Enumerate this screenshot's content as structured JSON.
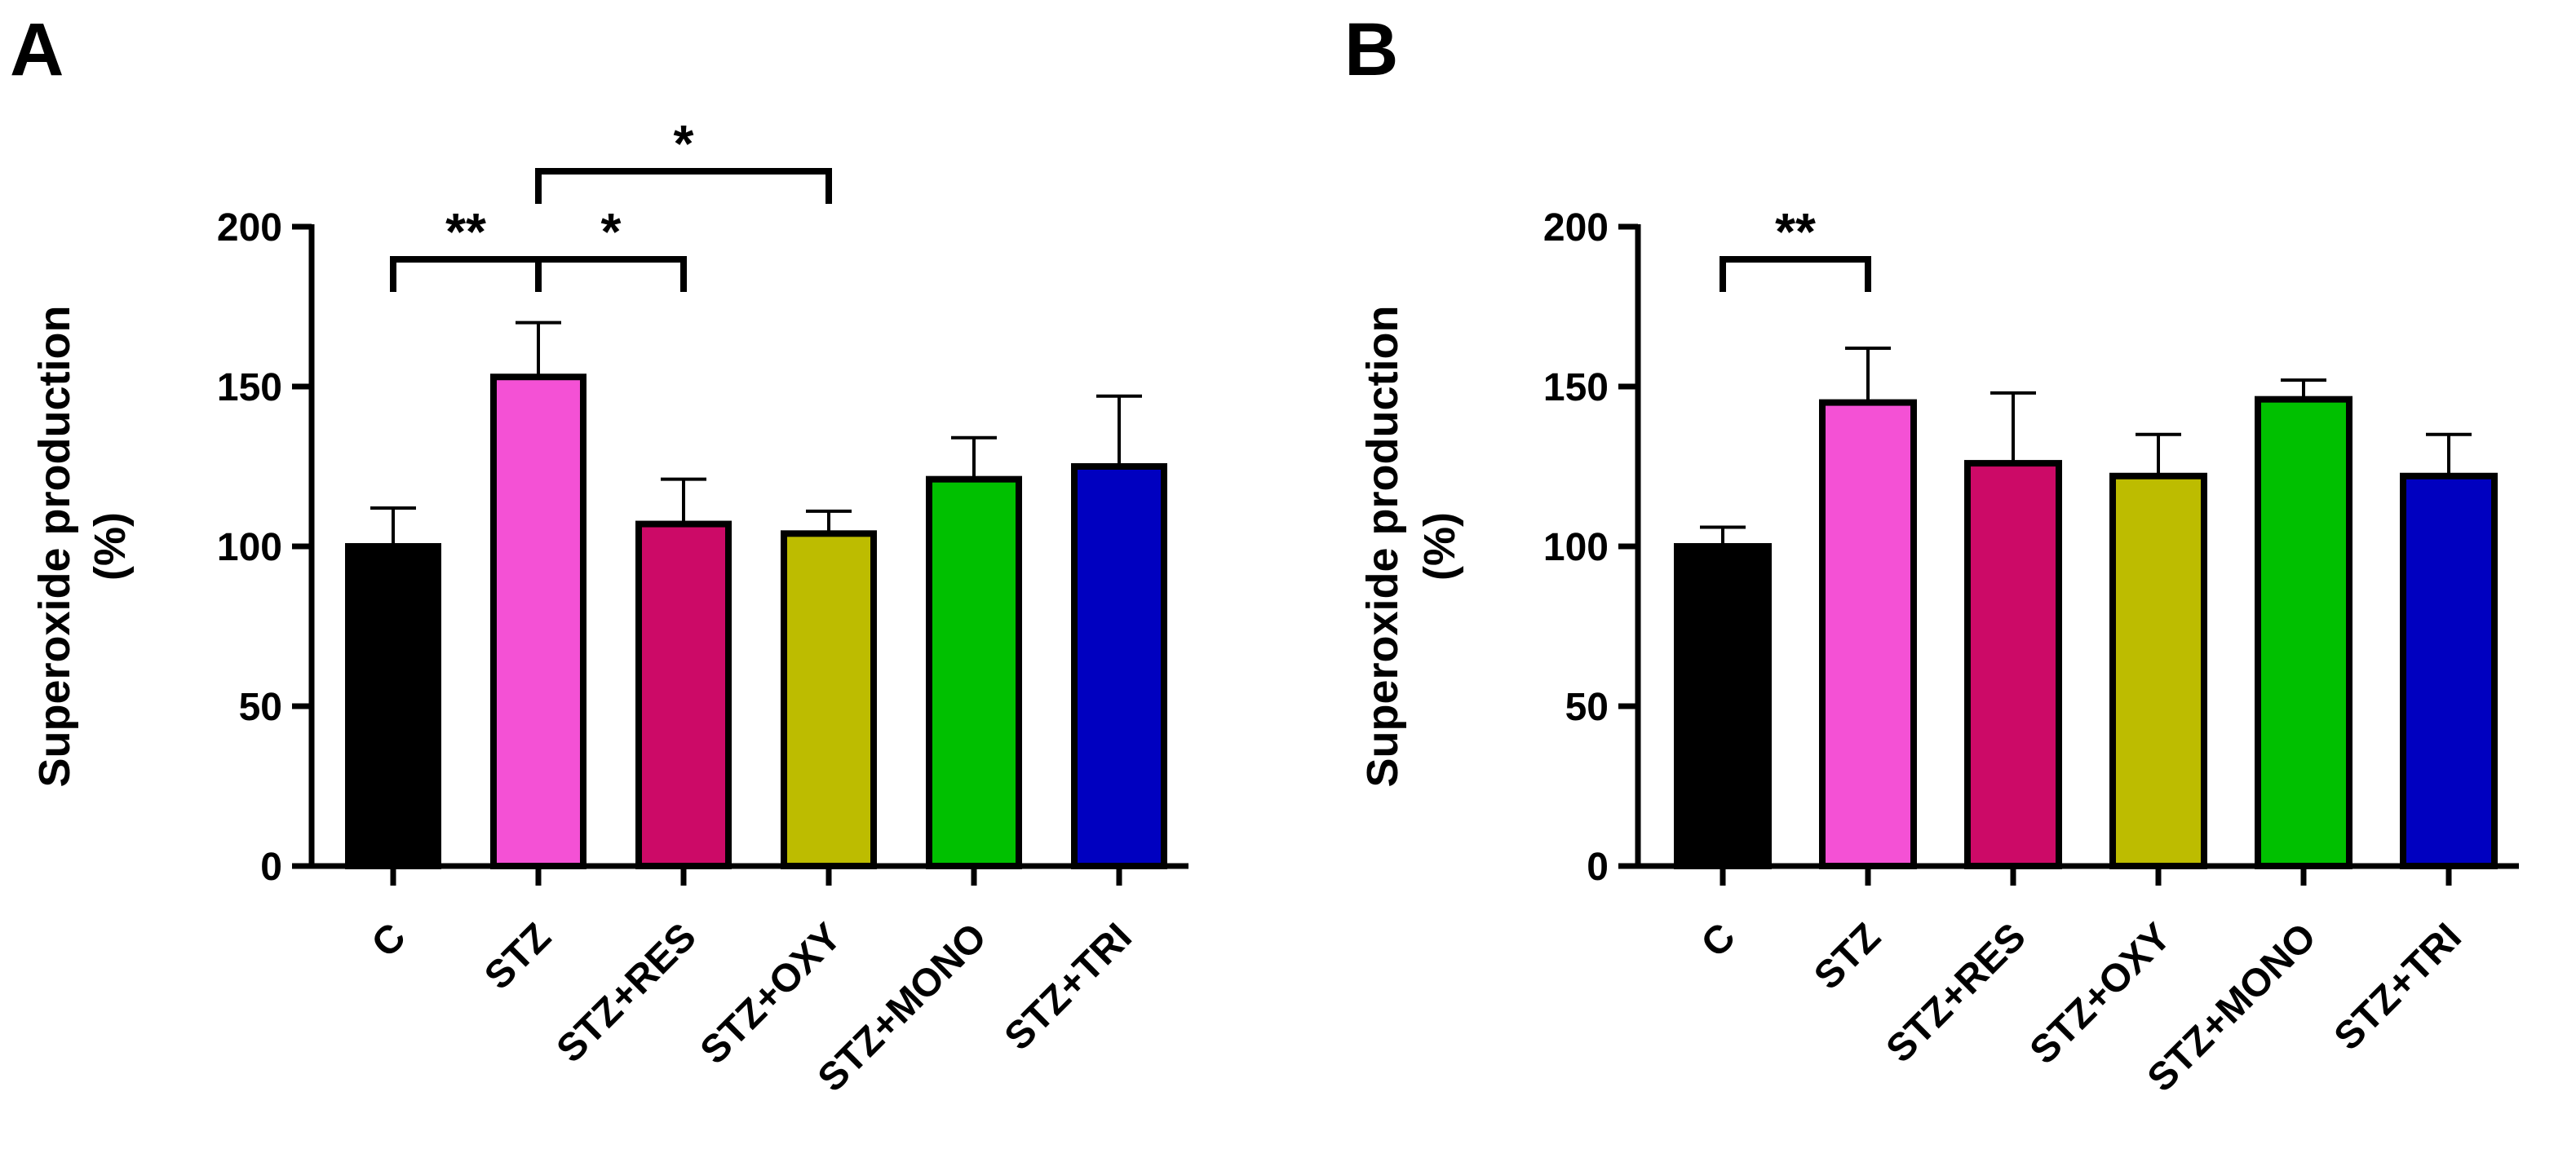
{
  "chart_data": [
    {
      "panel": "A",
      "type": "bar",
      "categories": [
        "C",
        "STZ",
        "STZ+RES",
        "STZ+OXY",
        "STZ+MONO",
        "STZ+TRI"
      ],
      "values": [
        100,
        153,
        107,
        104,
        121,
        125
      ],
      "errors": [
        12,
        17,
        14,
        7,
        13,
        22
      ],
      "colors": [
        "#000000",
        "#F451D5",
        "#CC0A67",
        "#BDBC00",
        "#00C000",
        "#0000C0"
      ],
      "ylabel": [
        "Superoxide production",
        "(%)"
      ],
      "ylim": [
        0,
        200
      ],
      "yticks": [
        0,
        50,
        100,
        150,
        200
      ],
      "significance": [
        {
          "from": 0,
          "to": 1,
          "label": "**",
          "level": 1
        },
        {
          "from": 1,
          "to": 2,
          "label": "*",
          "level": 1
        },
        {
          "from": 1,
          "to": 3,
          "label": "*",
          "level": 2
        }
      ]
    },
    {
      "panel": "B",
      "type": "bar",
      "categories": [
        "C",
        "STZ",
        "STZ+RES",
        "STZ+OXY",
        "STZ+MONO",
        "STZ+TRI"
      ],
      "values": [
        100,
        145,
        126,
        122,
        146,
        122
      ],
      "errors": [
        6,
        17,
        22,
        13,
        6,
        13
      ],
      "colors": [
        "#000000",
        "#F451D5",
        "#CC0A67",
        "#BDBC00",
        "#00C000",
        "#0000C0"
      ],
      "ylabel": [
        "Superoxide production",
        "(%)"
      ],
      "ylim": [
        0,
        200
      ],
      "yticks": [
        0,
        50,
        100,
        150,
        200
      ],
      "significance": [
        {
          "from": 0,
          "to": 1,
          "label": "**",
          "level": 1
        }
      ]
    }
  ]
}
